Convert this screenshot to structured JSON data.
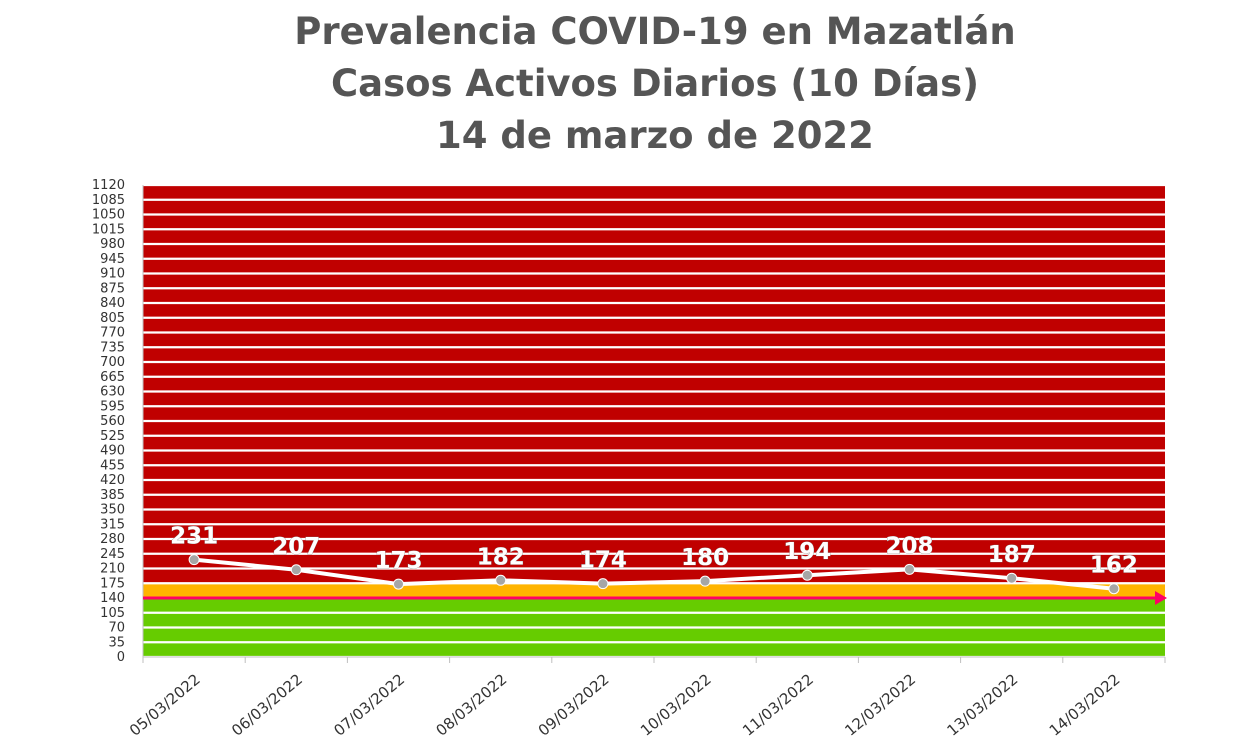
{
  "chart_data": {
    "type": "line",
    "title_lines": [
      "Prevalencia COVID-19 en Mazatlán",
      "Casos Activos Diarios (10 Días)",
      "14 de marzo de 2022"
    ],
    "categories": [
      "05/03/2022",
      "06/03/2022",
      "07/03/2022",
      "08/03/2022",
      "09/03/2022",
      "10/03/2022",
      "11/03/2022",
      "12/03/2022",
      "13/03/2022",
      "14/03/2022"
    ],
    "series": [
      {
        "values": [
          231,
          207,
          173,
          182,
          174,
          180,
          194,
          208,
          187,
          162
        ]
      }
    ],
    "data_labels": [
      "231",
      "207",
      "173",
      "182",
      "174",
      "180",
      "194",
      "208",
      "187",
      "162"
    ],
    "yticks": [
      "0",
      "35",
      "70",
      "105",
      "140",
      "175",
      "210",
      "245",
      "280",
      "315",
      "350",
      "385",
      "420",
      "455",
      "490",
      "525",
      "560",
      "595",
      "630",
      "665",
      "700",
      "735",
      "770",
      "805",
      "840",
      "875",
      "910",
      "945",
      "980",
      "1015",
      "1050",
      "1085",
      "1120"
    ],
    "ylim": [
      0,
      1120
    ],
    "background_zones": [
      {
        "from": 0,
        "to": 140,
        "color": "#66CC00"
      },
      {
        "from": 140,
        "to": 175,
        "color": "#FFB400"
      },
      {
        "from": 175,
        "to": 1120,
        "color": "#C00000"
      }
    ],
    "threshold_line": {
      "value": 140,
      "color": "#FF0066"
    },
    "line_color": "#FFFFFF",
    "marker_color": "#A6A6A6",
    "grid": true
  }
}
